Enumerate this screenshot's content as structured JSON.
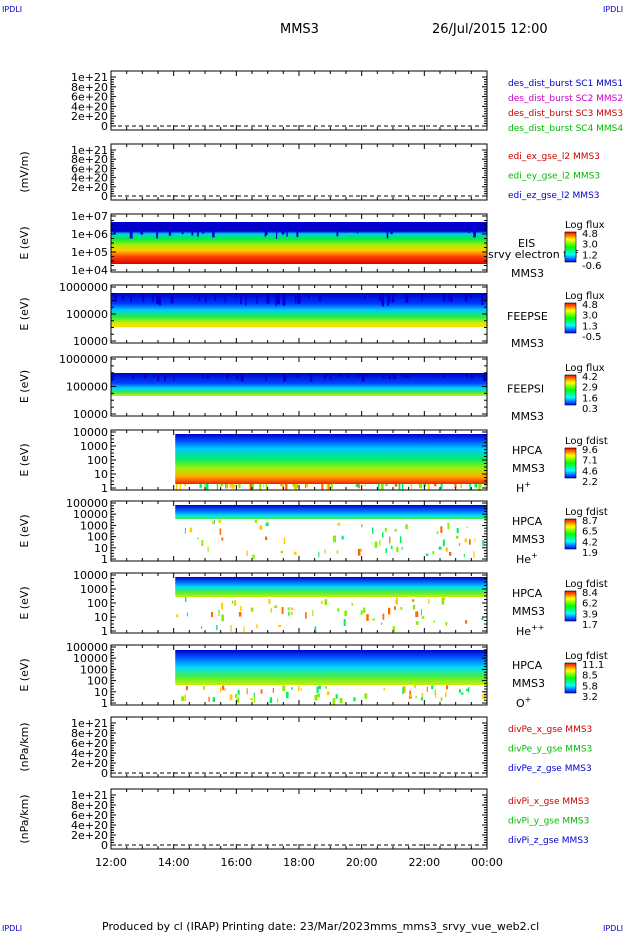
{
  "header": {
    "corner_label": "IPDLI",
    "spacecraft": "MMS3",
    "datetime": "26/Jul/2015 12:00"
  },
  "footer": {
    "produced_by": "Produced by cl (IRAP)",
    "printing_date": "Printing date: 23/Mar/2023",
    "script": "mms_mms3_srvy_vue_web2.cl"
  },
  "x_axis": {
    "ticks": [
      "12:00",
      "14:00",
      "16:00",
      "18:00",
      "20:00",
      "22:00",
      "00:00"
    ],
    "range_hours": [
      12,
      24
    ]
  },
  "colors": {
    "blue": "#0000cc",
    "magenta": "#cc00cc",
    "red": "#cc0000",
    "green": "#00bb00"
  },
  "chart_data": [
    {
      "type": "line",
      "ylabel": "",
      "yticks": [
        "1e+21",
        "8e+20",
        "6e+20",
        "4e+20",
        "2e+20",
        "0"
      ],
      "ylim": [
        0,
        1e+21
      ],
      "series": [
        {
          "name": "des_dist_burst SC1 MMS1",
          "color": "#0000cc",
          "values": []
        },
        {
          "name": "des_dist_burst SC2 MMS2",
          "color": "#cc00cc",
          "values": []
        },
        {
          "name": "des_dist_burst SC3 MMS3",
          "color": "#cc0000",
          "values": []
        },
        {
          "name": "des_dist_burst SC4 MMS4",
          "color": "#00bb00",
          "values": []
        }
      ]
    },
    {
      "type": "line",
      "ylabel": "(mV/m)",
      "yticks": [
        "1e+21",
        "8e+20",
        "6e+20",
        "4e+20",
        "2e+20",
        "0"
      ],
      "ylim": [
        0,
        1e+21
      ],
      "series": [
        {
          "name": "edi_ex_gse_l2 MMS3",
          "color": "#cc0000",
          "values": []
        },
        {
          "name": "edi_ey_gse_l2 MMS3",
          "color": "#00bb00",
          "values": []
        },
        {
          "name": "edi_ez_gse_l2 MMS3",
          "color": "#0000cc",
          "values": []
        }
      ]
    },
    {
      "type": "heatmap",
      "ylabel": "E (eV)",
      "yticks": [
        "1e+07",
        "1e+06",
        "1e+05",
        "1e+04"
      ],
      "instrument": "EIS",
      "species": "srvy electron tof",
      "sc": "MMS3",
      "colorbar": {
        "title": "Log flux",
        "ticks": [
          "4.8",
          "3.0",
          "1.2",
          "-0.6"
        ]
      }
    },
    {
      "type": "heatmap",
      "ylabel": "E (eV)",
      "yticks": [
        "1000000",
        "100000",
        "10000"
      ],
      "instrument": "FEEPSE",
      "species": "",
      "sc": "MMS3",
      "colorbar": {
        "title": "Log flux",
        "ticks": [
          "4.8",
          "3.0",
          "1.3",
          "-0.5"
        ]
      }
    },
    {
      "type": "heatmap",
      "ylabel": "E (eV)",
      "yticks": [
        "1000000",
        "100000",
        "10000"
      ],
      "instrument": "FEEPSI",
      "species": "",
      "sc": "MMS3",
      "colorbar": {
        "title": "Log flux",
        "ticks": [
          "4.2",
          "2.9",
          "1.6",
          "0.3"
        ]
      }
    },
    {
      "type": "heatmap",
      "ylabel": "E (eV)",
      "yticks": [
        "10000",
        "1000",
        "100",
        "10",
        "1"
      ],
      "instrument": "HPCA",
      "species": "H",
      "species_sup": "+",
      "sc": "MMS3",
      "colorbar": {
        "title": "Log fdist",
        "ticks": [
          "9.6",
          "7.1",
          "4.6",
          "2.2"
        ]
      }
    },
    {
      "type": "heatmap",
      "ylabel": "E (eV)",
      "yticks": [
        "100000",
        "10000",
        "1000",
        "100",
        "10",
        "1"
      ],
      "instrument": "HPCA",
      "species": "He",
      "species_sup": "+",
      "sc": "MMS3",
      "colorbar": {
        "title": "Log fdist",
        "ticks": [
          "8.7",
          "6.5",
          "4.2",
          "1.9"
        ]
      }
    },
    {
      "type": "heatmap",
      "ylabel": "E (eV)",
      "yticks": [
        "10000",
        "1000",
        "100",
        "10",
        "1"
      ],
      "instrument": "HPCA",
      "species": "He",
      "species_sup": "++",
      "sc": "MMS3",
      "colorbar": {
        "title": "Log fdist",
        "ticks": [
          "8.4",
          "6.2",
          "3.9",
          "1.7"
        ]
      }
    },
    {
      "type": "heatmap",
      "ylabel": "E (eV)",
      "yticks": [
        "100000",
        "10000",
        "1000",
        "100",
        "10",
        "1"
      ],
      "instrument": "HPCA",
      "species": "O",
      "species_sup": "+",
      "sc": "MMS3",
      "colorbar": {
        "title": "Log fdist",
        "ticks": [
          "11.1",
          "8.5",
          "5.8",
          "3.2"
        ]
      }
    },
    {
      "type": "line",
      "ylabel": "(nPa/km)",
      "yticks": [
        "1e+21",
        "8e+20",
        "6e+20",
        "4e+20",
        "2e+20",
        "0"
      ],
      "ylim": [
        0,
        1e+21
      ],
      "series": [
        {
          "name": "divPe_x_gse MMS3",
          "color": "#cc0000",
          "values": []
        },
        {
          "name": "divPe_y_gse MMS3",
          "color": "#00bb00",
          "values": []
        },
        {
          "name": "divPe_z_gse MMS3",
          "color": "#0000cc",
          "values": []
        }
      ]
    },
    {
      "type": "line",
      "ylabel": "(nPa/km)",
      "yticks": [
        "1e+21",
        "8e+20",
        "6e+20",
        "4e+20",
        "2e+20",
        "0"
      ],
      "ylim": [
        0,
        1e+21
      ],
      "series": [
        {
          "name": "divPi_x_gse MMS3",
          "color": "#cc0000",
          "values": []
        },
        {
          "name": "divPi_y_gse MMS3",
          "color": "#00bb00",
          "values": []
        },
        {
          "name": "divPi_z_gse MMS3",
          "color": "#0000cc",
          "values": []
        }
      ]
    }
  ]
}
